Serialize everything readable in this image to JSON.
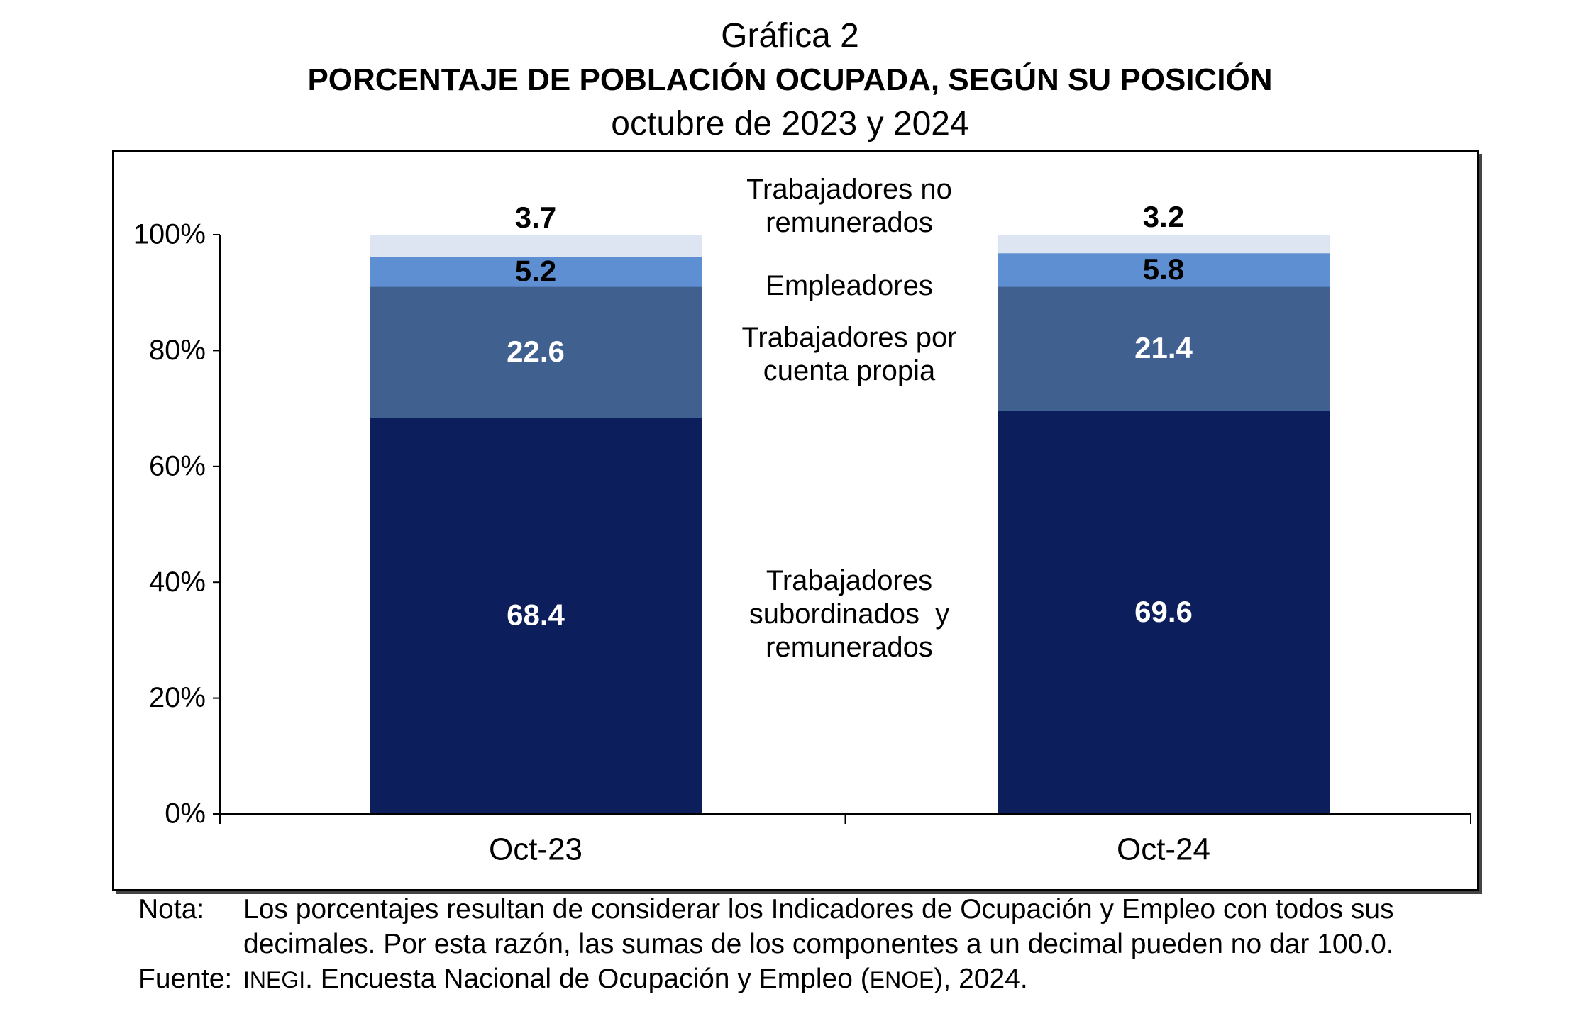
{
  "title": "Gráfica 2",
  "subtitle": "PORCENTAJE DE POBLACIÓN OCUPADA, SEGÚN SU POSICIÓN",
  "period": "octubre de 2023 y 2024",
  "chart_data": {
    "type": "bar",
    "stacked": true,
    "categories": [
      "Oct-23",
      "Oct-24"
    ],
    "series": [
      {
        "name": "Trabajadores subordinados y remunerados",
        "values": [
          68.4,
          69.6
        ],
        "color": "#0c1e5b",
        "label_color": "#ffffff"
      },
      {
        "name": "Trabajadores por cuenta propia",
        "values": [
          22.6,
          21.4
        ],
        "color": "#40608f",
        "label_color": "#ffffff"
      },
      {
        "name": "Empleadores",
        "values": [
          5.2,
          5.8
        ],
        "color": "#5f8fd3",
        "label_color": "#000000"
      },
      {
        "name": "Trabajadores no remunerados",
        "values": [
          3.7,
          3.2
        ],
        "color": "#dde5f2",
        "label_color": "#000000"
      }
    ],
    "series_label_lines": [
      [
        "Trabajadores",
        "subordinados  y",
        "remunerados"
      ],
      [
        "Trabajadores por",
        "cuenta propia"
      ],
      [
        "Empleadores"
      ],
      [
        "Trabajadores no",
        "remunerados"
      ]
    ],
    "yticks": [
      "0%",
      "20%",
      "40%",
      "60%",
      "80%",
      "100%"
    ],
    "ylim": [
      0,
      100
    ],
    "grid": false,
    "legend": "inline-center"
  },
  "notes": {
    "nota_label": "Nota:",
    "nota_line1": "Los porcentajes resultan de considerar los Indicadores de Ocupación y Empleo con todos sus",
    "nota_line2": "decimales. Por esta razón, las sumas de los componentes a un decimal pueden no dar 100.0.",
    "fuente_label": "Fuente:",
    "fuente_org": "INEGI",
    "fuente_text1": ". Encuesta Nacional de Ocupación y Empleo (",
    "fuente_abbr": "ENOE",
    "fuente_text2": "), 2024."
  }
}
